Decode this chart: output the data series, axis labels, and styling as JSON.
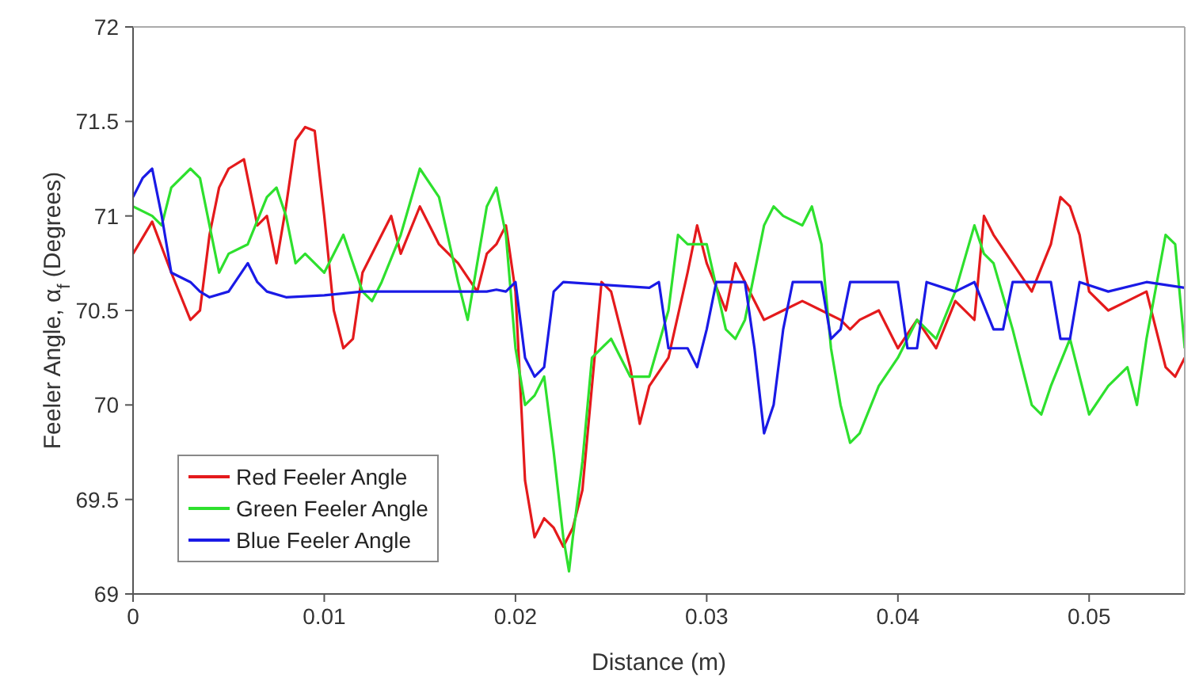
{
  "chart_data": {
    "type": "line",
    "xlabel": "Distance (m)",
    "ylabel": "Feeler Angle, α$_{f}$ (Degrees)",
    "xlim": [
      0,
      0.055
    ],
    "xticks": [
      0,
      0.01,
      0.02,
      0.03,
      0.04,
      0.05
    ],
    "ylim": [
      69,
      72
    ],
    "yticks": [
      69,
      69.5,
      70,
      70.5,
      71,
      71.5,
      72
    ],
    "grid": false,
    "legend": "bottom left",
    "marker": "none",
    "line_style": "solid",
    "series": [
      {
        "name": "Red Feeler Angle",
        "color": "#e41a1c",
        "x": [
          0,
          0.001,
          0.002,
          0.003,
          0.0035,
          0.004,
          0.0045,
          0.005,
          0.0058,
          0.0065,
          0.007,
          0.0075,
          0.008,
          0.0085,
          0.009,
          0.0095,
          0.01,
          0.0105,
          0.011,
          0.0115,
          0.012,
          0.013,
          0.0135,
          0.014,
          0.015,
          0.016,
          0.017,
          0.018,
          0.0185,
          0.019,
          0.0195,
          0.02,
          0.0205,
          0.021,
          0.0215,
          0.022,
          0.0225,
          0.023,
          0.0235,
          0.024,
          0.0245,
          0.025,
          0.026,
          0.0265,
          0.027,
          0.028,
          0.029,
          0.0295,
          0.03,
          0.031,
          0.0315,
          0.032,
          0.033,
          0.034,
          0.035,
          0.036,
          0.037,
          0.0375,
          0.038,
          0.039,
          0.04,
          0.041,
          0.042,
          0.043,
          0.044,
          0.0445,
          0.045,
          0.046,
          0.047,
          0.048,
          0.0485,
          0.049,
          0.0495,
          0.05,
          0.051,
          0.052,
          0.053,
          0.054,
          0.0545,
          0.055
        ],
        "values": [
          70.8,
          70.97,
          70.7,
          70.45,
          70.5,
          70.9,
          71.15,
          71.25,
          71.3,
          70.95,
          71.0,
          70.75,
          71.05,
          71.4,
          71.47,
          71.45,
          71.0,
          70.5,
          70.3,
          70.35,
          70.7,
          70.9,
          71.0,
          70.8,
          71.05,
          70.85,
          70.75,
          70.6,
          70.8,
          70.85,
          70.95,
          70.6,
          69.6,
          69.3,
          69.4,
          69.35,
          69.25,
          69.35,
          69.55,
          70.1,
          70.65,
          70.6,
          70.2,
          69.9,
          70.1,
          70.25,
          70.7,
          70.95,
          70.75,
          70.5,
          70.75,
          70.65,
          70.45,
          70.5,
          70.55,
          70.5,
          70.45,
          70.4,
          70.45,
          70.5,
          70.3,
          70.45,
          70.3,
          70.55,
          70.45,
          71.0,
          70.9,
          70.75,
          70.6,
          70.85,
          71.1,
          71.05,
          70.9,
          70.6,
          70.5,
          70.55,
          70.6,
          70.2,
          70.15,
          70.25
        ]
      },
      {
        "name": "Green Feeler Angle",
        "color": "#2ee02e",
        "x": [
          0,
          0.001,
          0.0015,
          0.002,
          0.003,
          0.0035,
          0.004,
          0.0045,
          0.005,
          0.006,
          0.007,
          0.0075,
          0.008,
          0.0085,
          0.009,
          0.0095,
          0.01,
          0.011,
          0.012,
          0.0125,
          0.013,
          0.014,
          0.015,
          0.016,
          0.017,
          0.0175,
          0.018,
          0.0185,
          0.019,
          0.0195,
          0.02,
          0.0205,
          0.021,
          0.0215,
          0.022,
          0.0225,
          0.0228,
          0.023,
          0.0235,
          0.024,
          0.025,
          0.026,
          0.027,
          0.028,
          0.0285,
          0.029,
          0.03,
          0.031,
          0.0315,
          0.032,
          0.033,
          0.0335,
          0.034,
          0.035,
          0.0355,
          0.036,
          0.0365,
          0.037,
          0.0375,
          0.038,
          0.039,
          0.04,
          0.041,
          0.042,
          0.043,
          0.044,
          0.0445,
          0.045,
          0.046,
          0.047,
          0.0475,
          0.048,
          0.049,
          0.05,
          0.051,
          0.052,
          0.0525,
          0.053,
          0.054,
          0.0545,
          0.055
        ],
        "values": [
          71.05,
          71.0,
          70.95,
          71.15,
          71.25,
          71.2,
          70.95,
          70.7,
          70.8,
          70.85,
          71.1,
          71.15,
          71.0,
          70.75,
          70.8,
          70.75,
          70.7,
          70.9,
          70.6,
          70.55,
          70.65,
          70.9,
          71.25,
          71.1,
          70.65,
          70.45,
          70.75,
          71.05,
          71.15,
          70.9,
          70.3,
          70.0,
          70.05,
          70.15,
          69.75,
          69.3,
          69.12,
          69.3,
          69.7,
          70.25,
          70.35,
          70.15,
          70.15,
          70.5,
          70.9,
          70.85,
          70.85,
          70.4,
          70.35,
          70.45,
          70.95,
          71.05,
          71.0,
          70.95,
          71.05,
          70.85,
          70.3,
          70.0,
          69.8,
          69.85,
          70.1,
          70.25,
          70.45,
          70.35,
          70.6,
          70.95,
          70.8,
          70.75,
          70.4,
          70.0,
          69.95,
          70.1,
          70.35,
          69.95,
          70.1,
          70.2,
          70.0,
          70.35,
          70.9,
          70.85,
          70.3
        ]
      },
      {
        "name": "Blue Feeler Angle",
        "color": "#1a1ae6",
        "x": [
          0,
          0.0005,
          0.001,
          0.0015,
          0.002,
          0.003,
          0.0035,
          0.004,
          0.005,
          0.006,
          0.0065,
          0.007,
          0.008,
          0.01,
          0.012,
          0.015,
          0.0185,
          0.019,
          0.0195,
          0.02,
          0.0205,
          0.021,
          0.0215,
          0.022,
          0.0225,
          0.027,
          0.0275,
          0.028,
          0.029,
          0.0295,
          0.03,
          0.0305,
          0.032,
          0.0325,
          0.033,
          0.0335,
          0.034,
          0.0345,
          0.036,
          0.0365,
          0.037,
          0.0375,
          0.04,
          0.0405,
          0.041,
          0.0415,
          0.043,
          0.044,
          0.045,
          0.0455,
          0.046,
          0.048,
          0.0485,
          0.049,
          0.0495,
          0.051,
          0.053,
          0.055
        ],
        "values": [
          71.1,
          71.2,
          71.25,
          71.0,
          70.7,
          70.65,
          70.6,
          70.57,
          70.6,
          70.75,
          70.65,
          70.6,
          70.57,
          70.58,
          70.6,
          70.6,
          70.6,
          70.61,
          70.6,
          70.65,
          70.25,
          70.15,
          70.2,
          70.6,
          70.65,
          70.62,
          70.65,
          70.3,
          70.3,
          70.2,
          70.4,
          70.65,
          70.65,
          70.3,
          69.85,
          70.0,
          70.4,
          70.65,
          70.65,
          70.35,
          70.4,
          70.65,
          70.65,
          70.3,
          70.3,
          70.65,
          70.6,
          70.65,
          70.4,
          70.4,
          70.65,
          70.65,
          70.35,
          70.35,
          70.65,
          70.6,
          70.65,
          70.62
        ]
      }
    ]
  }
}
